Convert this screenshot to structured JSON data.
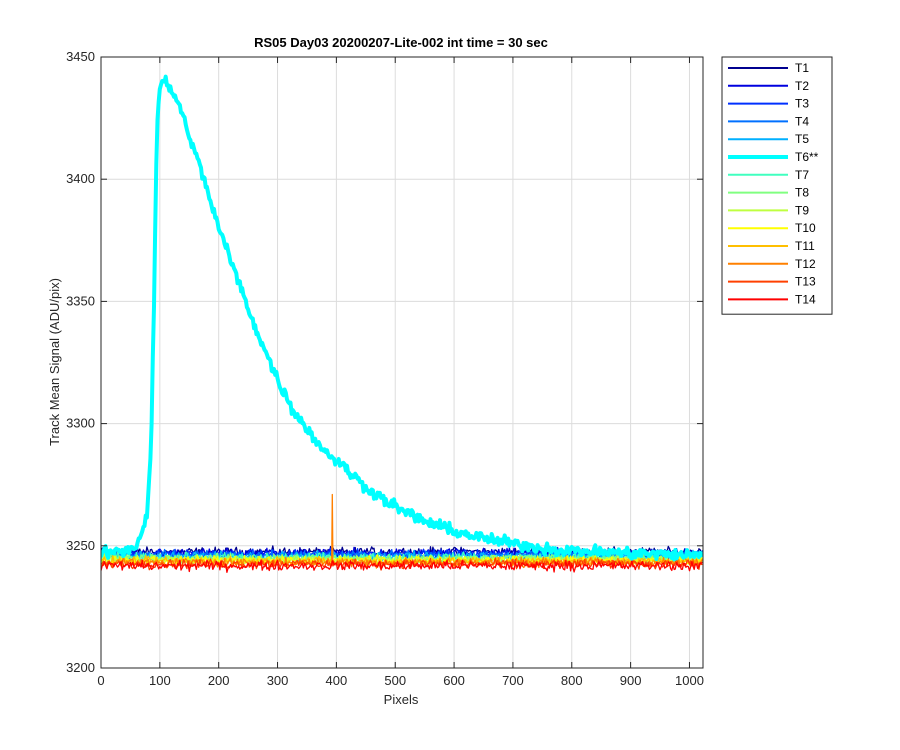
{
  "chart_data": {
    "type": "line",
    "title": "RS05 Day03 20200207-Lite-002 int time = 30 sec",
    "xlabel": "Pixels",
    "ylabel": "Track Mean Signal (ADU/pix)",
    "xlim": [
      0,
      1023
    ],
    "ylim": [
      3200,
      3450
    ],
    "xticks": [
      0,
      100,
      200,
      300,
      400,
      500,
      600,
      700,
      800,
      900,
      1000
    ],
    "yticks": [
      3200,
      3250,
      3300,
      3350,
      3400,
      3450
    ],
    "grid": true,
    "legend_position": "outside-top-right",
    "series": [
      {
        "name": "T1",
        "color": "#00008f",
        "baseline": 3247.5,
        "noise": 1.3
      },
      {
        "name": "T2",
        "color": "#0000df",
        "baseline": 3247.0,
        "noise": 1.3
      },
      {
        "name": "T3",
        "color": "#0030ff",
        "baseline": 3246.6,
        "noise": 1.3
      },
      {
        "name": "T4",
        "color": "#0070ff",
        "baseline": 3246.2,
        "noise": 1.3
      },
      {
        "name": "T5",
        "color": "#00b0ff",
        "baseline": 3245.8,
        "noise": 1.3
      },
      {
        "name": "T6**",
        "color": "#00ffff",
        "baseline": 3246.0,
        "noise": 1.6,
        "bold": true,
        "profile": [
          {
            "x": 0,
            "y": 3247
          },
          {
            "x": 40,
            "y": 3248
          },
          {
            "x": 60,
            "y": 3250
          },
          {
            "x": 78,
            "y": 3262
          },
          {
            "x": 85,
            "y": 3290
          },
          {
            "x": 90,
            "y": 3350
          },
          {
            "x": 95,
            "y": 3420
          },
          {
            "x": 100,
            "y": 3438
          },
          {
            "x": 110,
            "y": 3440
          },
          {
            "x": 130,
            "y": 3432
          },
          {
            "x": 150,
            "y": 3418
          },
          {
            "x": 175,
            "y": 3400
          },
          {
            "x": 200,
            "y": 3380
          },
          {
            "x": 225,
            "y": 3364
          },
          {
            "x": 250,
            "y": 3347
          },
          {
            "x": 275,
            "y": 3332
          },
          {
            "x": 300,
            "y": 3318
          },
          {
            "x": 325,
            "y": 3306
          },
          {
            "x": 350,
            "y": 3298
          },
          {
            "x": 375,
            "y": 3290
          },
          {
            "x": 400,
            "y": 3285
          },
          {
            "x": 450,
            "y": 3274
          },
          {
            "x": 500,
            "y": 3266
          },
          {
            "x": 550,
            "y": 3260
          },
          {
            "x": 600,
            "y": 3256
          },
          {
            "x": 650,
            "y": 3253
          },
          {
            "x": 700,
            "y": 3251
          },
          {
            "x": 750,
            "y": 3249
          },
          {
            "x": 800,
            "y": 3248
          },
          {
            "x": 900,
            "y": 3247
          },
          {
            "x": 1023,
            "y": 3246
          }
        ]
      },
      {
        "name": "T7",
        "color": "#40ffbf",
        "baseline": 3245.2,
        "noise": 1.3
      },
      {
        "name": "T8",
        "color": "#80ff80",
        "baseline": 3244.8,
        "noise": 1.3
      },
      {
        "name": "T9",
        "color": "#bfff40",
        "baseline": 3244.4,
        "noise": 1.3
      },
      {
        "name": "T10",
        "color": "#ffff00",
        "baseline": 3244.0,
        "noise": 1.3
      },
      {
        "name": "T11",
        "color": "#ffbf00",
        "baseline": 3243.6,
        "noise": 1.3
      },
      {
        "name": "T12",
        "color": "#ff8000",
        "baseline": 3243.2,
        "noise": 1.3,
        "spike": {
          "x": 393,
          "y": 3271
        }
      },
      {
        "name": "T13",
        "color": "#ff4000",
        "baseline": 3242.6,
        "noise": 1.3
      },
      {
        "name": "T14",
        "color": "#ff0000",
        "baseline": 3241.8,
        "noise": 1.4
      }
    ]
  }
}
